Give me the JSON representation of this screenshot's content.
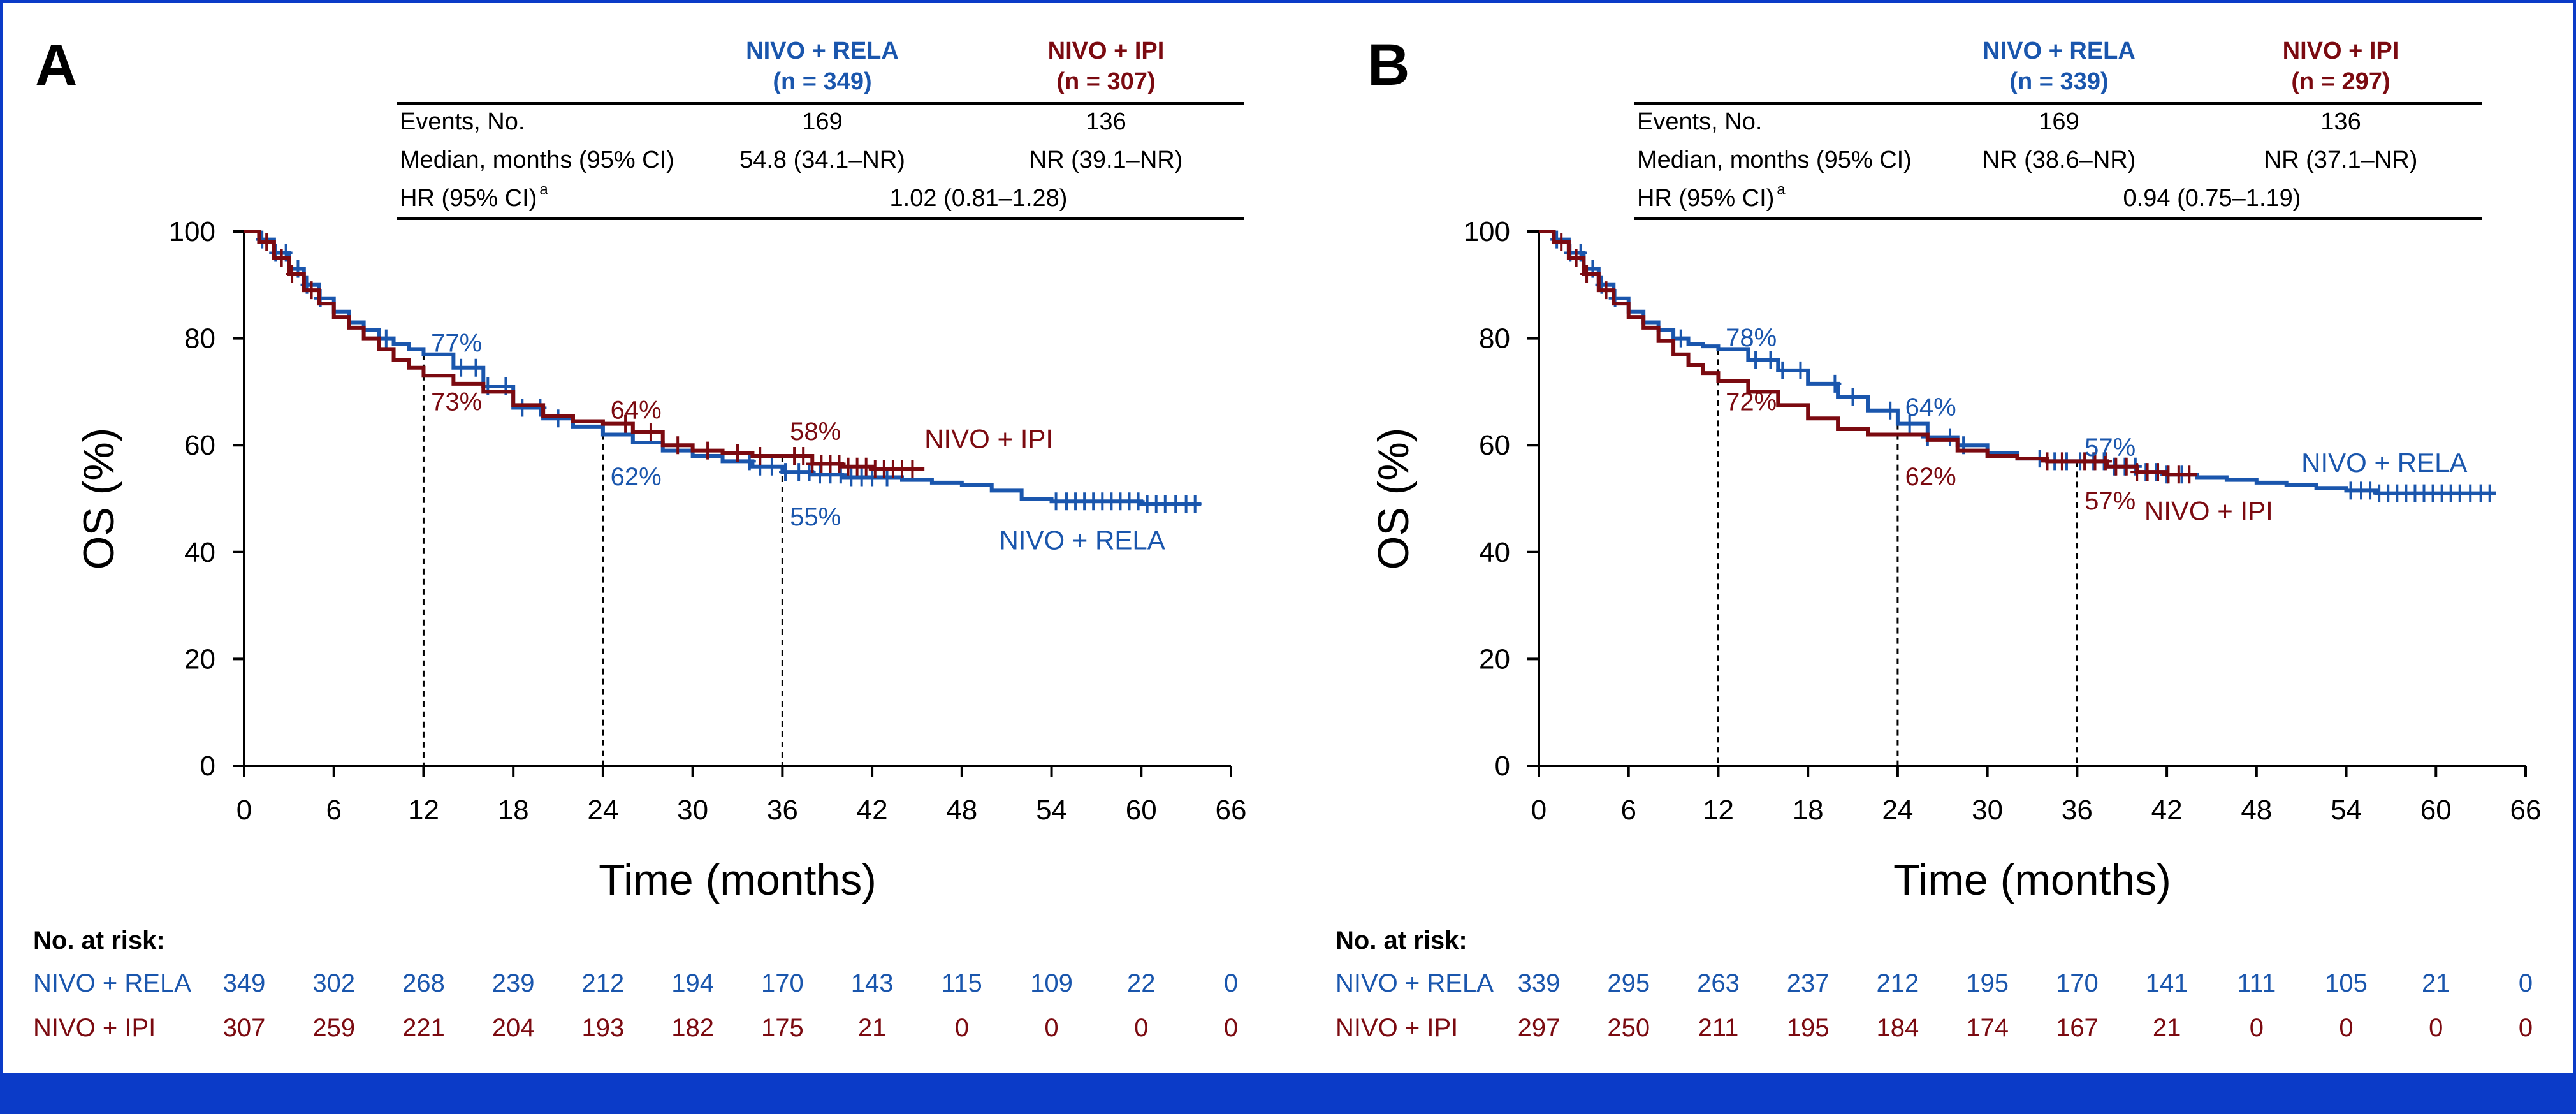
{
  "colors": {
    "rela": "#1a56ad",
    "ipi": "#7b0a10",
    "frame": "#0b3bc8",
    "text": "#000000"
  },
  "chart_data": [
    {
      "panel_label": "A",
      "type": "line",
      "subtype": "kaplan-meier",
      "xlabel": "Time (months)",
      "ylabel": "OS (%)",
      "xlim": [
        0,
        66
      ],
      "ylim": [
        0,
        100
      ],
      "xticks": [
        "0",
        "6",
        "12",
        "18",
        "24",
        "30",
        "36",
        "42",
        "48",
        "54",
        "60",
        "66"
      ],
      "yticks": [
        "0",
        "20",
        "40",
        "60",
        "80",
        "100"
      ],
      "landmarks": [
        12,
        24,
        36
      ],
      "table": {
        "header_rela": "NIVO + RELA",
        "n_rela": "(n = 349)",
        "header_ipi": "NIVO + IPI",
        "n_ipi": "(n = 307)",
        "events_label": "Events, No.",
        "events_rela": "169",
        "events_ipi": "136",
        "median_label": "Median, months (95% CI)",
        "median_rela": "54.8 (34.1–NR)",
        "median_ipi": "NR (39.1–NR)",
        "hr_label": "HR (95% CI)",
        "hr_sup": "a",
        "hr_value": "1.02 (0.81–1.28)"
      },
      "annotations": [
        {
          "text": "77%",
          "series": "rela",
          "x": 12.5,
          "y": 77.5
        },
        {
          "text": "73%",
          "series": "ipi",
          "x": 12.5,
          "y": 66.5
        },
        {
          "text": "64%",
          "series": "ipi",
          "x": 24.5,
          "y": 65
        },
        {
          "text": "62%",
          "series": "rela",
          "x": 24.5,
          "y": 52.5
        },
        {
          "text": "58%",
          "series": "ipi",
          "x": 36.5,
          "y": 61
        },
        {
          "text": "55%",
          "series": "rela",
          "x": 36.5,
          "y": 45
        }
      ],
      "curve_labels": [
        {
          "text": "NIVO + IPI",
          "series": "ipi",
          "x": 45.5,
          "y": 59.5
        },
        {
          "text": "NIVO + RELA",
          "series": "rela",
          "x": 50.5,
          "y": 40.5
        }
      ],
      "series": [
        {
          "name": "NIVO + RELA",
          "key": "rela",
          "x": [
            0,
            1,
            2,
            3,
            4,
            5,
            6,
            7,
            8,
            9,
            10,
            11,
            12,
            14,
            16,
            18,
            20,
            22,
            24,
            26,
            28,
            30,
            32,
            34,
            36,
            38,
            40,
            42,
            44,
            46,
            48,
            50,
            52,
            54,
            56,
            58,
            60,
            62,
            64
          ],
          "y": [
            100,
            98.5,
            96,
            93,
            90,
            87.5,
            85,
            83,
            81.5,
            80,
            79,
            78,
            77,
            74.5,
            71,
            67,
            65,
            63.5,
            62,
            60.5,
            59,
            58,
            57,
            56,
            55,
            54.5,
            54,
            54,
            53.5,
            53,
            52.5,
            51.5,
            50,
            49.5,
            49.5,
            49.5,
            49,
            49,
            49
          ],
          "censor_x": [
            1.2,
            2.1,
            2.8,
            3.6,
            4.2,
            5.1,
            9.5,
            14.5,
            15.5,
            16.3,
            17.5,
            18.6,
            19.8,
            21,
            33.8,
            34.5,
            35.3,
            36.2,
            37.1,
            37.8,
            38.5,
            39.2,
            39.9,
            40.6,
            41.3,
            42,
            43,
            54.3,
            55,
            55.6,
            56.2,
            56.8,
            57.4,
            58,
            58.6,
            59.2,
            59.8,
            60.4,
            61,
            61.6,
            62.3,
            63,
            63.6
          ],
          "at_risk": [
            "349",
            "302",
            "268",
            "239",
            "212",
            "194",
            "170",
            "143",
            "115",
            "109",
            "22",
            "0"
          ]
        },
        {
          "name": "NIVO + IPI",
          "key": "ipi",
          "x": [
            0,
            1,
            2,
            3,
            4,
            5,
            6,
            7,
            8,
            9,
            10,
            11,
            12,
            14,
            16,
            18,
            20,
            22,
            24,
            26,
            28,
            30,
            32,
            34,
            36,
            38,
            40,
            42,
            44,
            45.5
          ],
          "y": [
            100,
            98,
            95,
            92,
            89,
            86.5,
            84,
            82,
            80,
            78,
            76,
            74.5,
            73,
            71.5,
            70,
            67.5,
            65.5,
            64.5,
            64,
            62.5,
            60,
            59,
            58.5,
            58,
            58,
            56.5,
            56,
            55.5,
            55.5,
            55.5
          ],
          "censor_x": [
            1.5,
            2.5,
            3.2,
            4.5,
            25.5,
            27.2,
            29,
            31,
            33,
            34.5,
            36.8,
            37.4,
            38,
            38.6,
            39.2,
            39.8,
            40.4,
            41,
            41.6,
            42.2,
            42.8,
            43.4,
            44,
            44.7
          ],
          "at_risk": [
            "307",
            "259",
            "221",
            "204",
            "193",
            "182",
            "175",
            "21",
            "0",
            "0",
            "0",
            "0"
          ]
        }
      ]
    },
    {
      "panel_label": "B",
      "type": "line",
      "subtype": "kaplan-meier",
      "xlabel": "Time (months)",
      "ylabel": "OS (%)",
      "xlim": [
        0,
        66
      ],
      "ylim": [
        0,
        100
      ],
      "xticks": [
        "0",
        "6",
        "12",
        "18",
        "24",
        "30",
        "36",
        "42",
        "48",
        "54",
        "60",
        "66"
      ],
      "yticks": [
        "0",
        "20",
        "40",
        "60",
        "80",
        "100"
      ],
      "landmarks": [
        12,
        24,
        36
      ],
      "table": {
        "header_rela": "NIVO + RELA",
        "n_rela": "(n = 339)",
        "header_ipi": "NIVO + IPI",
        "n_ipi": "(n = 297)",
        "events_label": "Events, No.",
        "events_rela": "169",
        "events_ipi": "136",
        "median_label": "Median, months (95% CI)",
        "median_rela": "NR (38.6–NR)",
        "median_ipi": "NR (37.1–NR)",
        "hr_label": "HR (95% CI)",
        "hr_sup": "a",
        "hr_value": "0.94 (0.75–1.19)"
      },
      "annotations": [
        {
          "text": "78%",
          "series": "rela",
          "x": 12.5,
          "y": 78.5
        },
        {
          "text": "72%",
          "series": "ipi",
          "x": 12.5,
          "y": 66.5
        },
        {
          "text": "64%",
          "series": "rela",
          "x": 24.5,
          "y": 65.5
        },
        {
          "text": "62%",
          "series": "ipi",
          "x": 24.5,
          "y": 52.5
        },
        {
          "text": "57%",
          "series": "rela",
          "x": 36.5,
          "y": 58
        },
        {
          "text": "57%",
          "series": "ipi",
          "x": 36.5,
          "y": 48
        }
      ],
      "curve_labels": [
        {
          "text": "NIVO + RELA",
          "series": "rela",
          "x": 51,
          "y": 55
        },
        {
          "text": "NIVO + IPI",
          "series": "ipi",
          "x": 40.5,
          "y": 46
        }
      ],
      "series": [
        {
          "name": "NIVO + RELA",
          "key": "rela",
          "x": [
            0,
            1,
            2,
            3,
            4,
            5,
            6,
            7,
            8,
            9,
            10,
            11,
            12,
            14,
            16,
            18,
            20,
            22,
            24,
            26,
            28,
            30,
            32,
            34,
            36,
            38,
            40,
            42,
            44,
            46,
            48,
            50,
            52,
            54,
            56,
            58,
            60,
            62,
            64
          ],
          "y": [
            100,
            98.5,
            96,
            93,
            90,
            87.5,
            85,
            83,
            81.5,
            80,
            79,
            78.5,
            78,
            76,
            74,
            71.5,
            69,
            66.5,
            64,
            61.5,
            60,
            58.5,
            57.5,
            57,
            57,
            56,
            55,
            54.5,
            54,
            53.5,
            53,
            52.5,
            52,
            51.5,
            51,
            51,
            51,
            51,
            51
          ],
          "censor_x": [
            1.2,
            2.1,
            2.8,
            3.6,
            4.2,
            5.1,
            9.5,
            14.5,
            15.5,
            16.3,
            17.5,
            19.8,
            21,
            23.5,
            24.8,
            26,
            27.5,
            28.4,
            33.5,
            34.5,
            35.3,
            36.2,
            37.1,
            37.8,
            38.5,
            39.2,
            39.9,
            40.6,
            41.3,
            42,
            43,
            54.3,
            55,
            55.6,
            56.2,
            56.8,
            57.4,
            58,
            58.6,
            59.2,
            59.8,
            60.4,
            61,
            61.6,
            62.3,
            63,
            63.6
          ],
          "at_risk": [
            "339",
            "295",
            "263",
            "237",
            "212",
            "195",
            "170",
            "141",
            "111",
            "105",
            "21",
            "0"
          ]
        },
        {
          "name": "NIVO + IPI",
          "key": "ipi",
          "x": [
            0,
            1,
            2,
            3,
            4,
            5,
            6,
            7,
            8,
            9,
            10,
            11,
            12,
            14,
            16,
            18,
            20,
            22,
            24,
            26,
            28,
            30,
            32,
            34,
            36,
            38,
            40,
            42,
            44
          ],
          "y": [
            100,
            98,
            95,
            92,
            89,
            86.5,
            84,
            82,
            79.5,
            77,
            75,
            73.5,
            72,
            70,
            67.5,
            65,
            63,
            62,
            62,
            61,
            59,
            58,
            57.5,
            57,
            57,
            56,
            55,
            54.5,
            54.5
          ],
          "censor_x": [
            1.5,
            2.5,
            3.2,
            4.5,
            34,
            35,
            36.5,
            37.2,
            37.9,
            38.6,
            39.3,
            40,
            40.7,
            41.4,
            42.1,
            42.8,
            43.5
          ],
          "at_risk": [
            "297",
            "250",
            "211",
            "195",
            "184",
            "174",
            "167",
            "21",
            "0",
            "0",
            "0",
            "0"
          ]
        }
      ]
    }
  ],
  "risk_table": {
    "title": "No. at risk:",
    "row_labels": [
      "NIVO + RELA",
      "NIVO + IPI"
    ]
  }
}
